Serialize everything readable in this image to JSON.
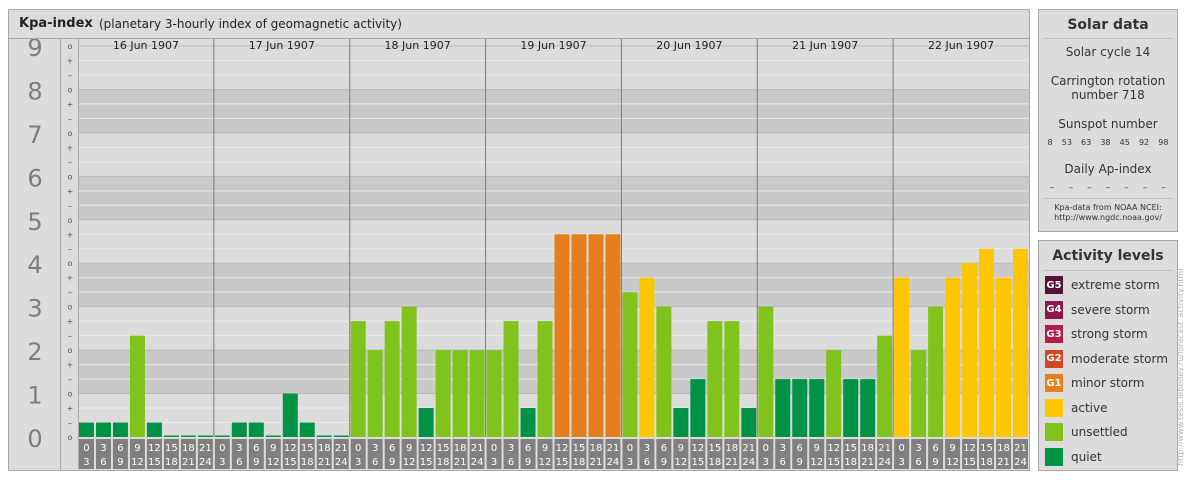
{
  "header": {
    "title": "Kpa-index",
    "subtitle": "(planetary 3-hourly index of geomagnetic activity)"
  },
  "chart_data": {
    "type": "bar",
    "title": "Kpa-index",
    "subtitle": "(planetary 3-hourly index of geomagnetic activity)",
    "ylim": [
      0,
      9
    ],
    "y_ticks": [
      "0",
      "1",
      "2",
      "3",
      "4",
      "5",
      "6",
      "7",
      "8",
      "9"
    ],
    "y_minor_labels": [
      "+",
      "o",
      "–"
    ],
    "grid": true,
    "days": [
      "16 Jun 1907",
      "17 Jun 1907",
      "18 Jun 1907",
      "19 Jun 1907",
      "20 Jun 1907",
      "21 Jun 1907",
      "22 Jun 1907"
    ],
    "hour_ranges": [
      [
        "0",
        "3"
      ],
      [
        "3",
        "6"
      ],
      [
        "6",
        "9"
      ],
      [
        "9",
        "12"
      ],
      [
        "12",
        "15"
      ],
      [
        "15",
        "18"
      ],
      [
        "18",
        "21"
      ],
      [
        "21",
        "24"
      ]
    ],
    "values": [
      [
        0.333,
        0.333,
        0.333,
        2.333,
        0.333,
        0,
        0,
        0
      ],
      [
        0,
        0.333,
        0.333,
        0,
        1,
        0.333,
        0,
        0
      ],
      [
        2.667,
        2,
        2.667,
        3,
        0.667,
        2,
        2,
        2
      ],
      [
        2,
        2.667,
        0.667,
        2.667,
        4.667,
        4.667,
        4.667,
        4.667
      ],
      [
        3.333,
        3.667,
        3,
        0.667,
        1.333,
        2.667,
        2.667,
        0.667
      ],
      [
        3,
        1.333,
        1.333,
        1.333,
        2,
        1.333,
        1.333,
        2.333
      ],
      [
        3.667,
        2,
        3,
        3.667,
        4,
        4.333,
        3.667,
        4.333
      ]
    ],
    "levels": [
      [
        0,
        0,
        0,
        1,
        0,
        0,
        0,
        0
      ],
      [
        0,
        0,
        0,
        0,
        0,
        0,
        0,
        0
      ],
      [
        1,
        1,
        1,
        1,
        0,
        1,
        1,
        1
      ],
      [
        1,
        1,
        0,
        1,
        3,
        3,
        3,
        3
      ],
      [
        1,
        2,
        1,
        0,
        0,
        1,
        1,
        0
      ],
      [
        1,
        0,
        0,
        0,
        1,
        0,
        0,
        1
      ],
      [
        2,
        1,
        1,
        2,
        2,
        2,
        2,
        2
      ]
    ],
    "level_colors": [
      "#009245",
      "#7fc31c",
      "#fec601",
      "#e67f1b",
      "#d24621",
      "#b51b4d",
      "#8b1a4c",
      "#5a0f37"
    ]
  },
  "solar": {
    "title": "Solar data",
    "cycle": "Solar cycle 14",
    "carrington": "Carrington rotation number 718",
    "sunspot_title": "Sunspot number",
    "sunspot_values": [
      "8",
      "53",
      "63",
      "38",
      "45",
      "92",
      "98"
    ],
    "ap_title": "Daily Ap-index",
    "ap_values": [
      "–",
      "–",
      "–",
      "–",
      "–",
      "–",
      "–"
    ],
    "source_line1": "Kpa-data from NOAA NCEI:",
    "source_line2": "http://www.ngdc.noaa.gov/"
  },
  "activity": {
    "title": "Activity levels",
    "items": [
      {
        "badge": "G5",
        "label": "extreme storm",
        "color": "#5a0f37"
      },
      {
        "badge": "G4",
        "label": "severe storm",
        "color": "#8b1a4c"
      },
      {
        "badge": "G3",
        "label": "strong storm",
        "color": "#b51b4d"
      },
      {
        "badge": "G2",
        "label": "moderate storm",
        "color": "#d24621"
      },
      {
        "badge": "G1",
        "label": "minor storm",
        "color": "#e67f1b"
      },
      {
        "badge": "",
        "label": "active",
        "color": "#fec601"
      },
      {
        "badge": "",
        "label": "unsettled",
        "color": "#7fc31c"
      },
      {
        "badge": "",
        "label": "quiet",
        "color": "#009245"
      }
    ]
  },
  "watermark": "http://www.tesis.lebedev.ru/forecast_activity.html"
}
